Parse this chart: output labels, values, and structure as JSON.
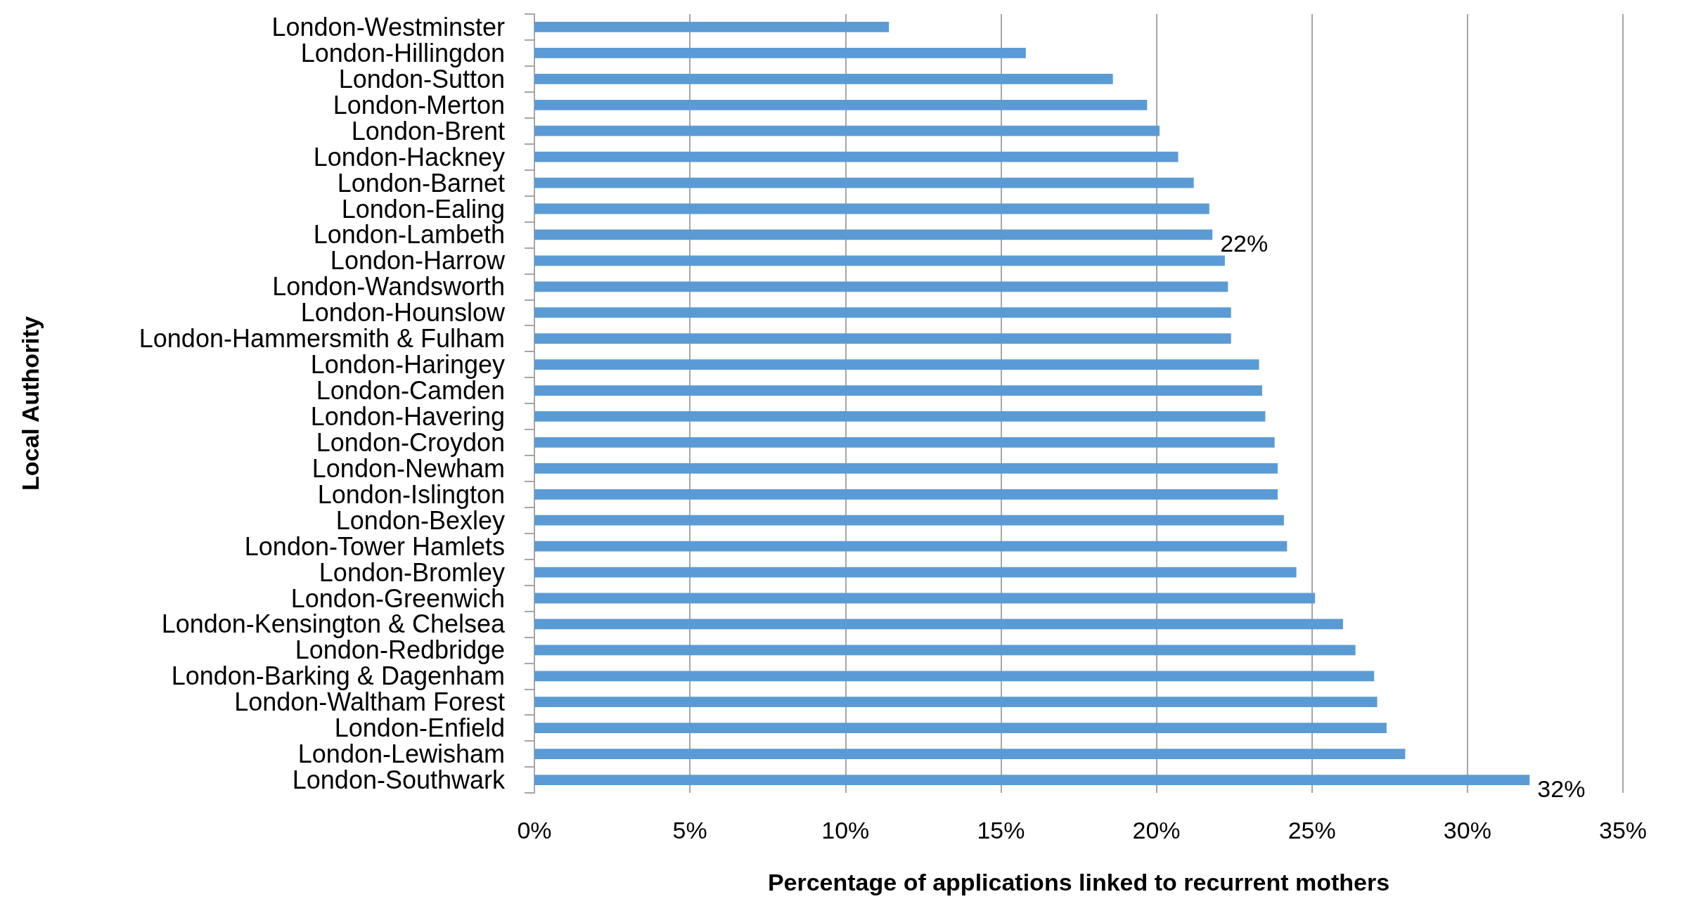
{
  "chart_data": {
    "type": "bar",
    "orientation": "horizontal",
    "xlabel": "Percentage of applications linked to recurrent mothers",
    "ylabel": "Local Authority",
    "categories": [
      "London-Westminster",
      "London-Hillingdon",
      "London-Sutton",
      "London-Merton",
      "London-Brent",
      "London-Hackney",
      "London-Barnet",
      "London-Ealing",
      "London-Lambeth",
      "London-Harrow",
      "London-Wandsworth",
      "London-Hounslow",
      "London-Hammersmith & Fulham",
      "London-Haringey",
      "London-Camden",
      "London-Havering",
      "London-Croydon",
      "London-Newham",
      "London-Islington",
      "London-Bexley",
      "London-Tower Hamlets",
      "London-Bromley",
      "London-Greenwich",
      "London-Kensington & Chelsea",
      "London-Redbridge",
      "London-Barking & Dagenham",
      "London-Waltham Forest",
      "London-Enfield",
      "London-Lewisham",
      "London-Southwark"
    ],
    "values": [
      11.4,
      15.8,
      18.6,
      19.7,
      20.1,
      20.7,
      21.2,
      21.7,
      21.8,
      22.2,
      22.3,
      22.4,
      22.4,
      23.3,
      23.4,
      23.5,
      23.8,
      23.9,
      23.9,
      24.1,
      24.2,
      24.5,
      25.1,
      26.0,
      26.4,
      27.0,
      27.1,
      27.4,
      28.0,
      32.0
    ],
    "value_labels": [
      null,
      null,
      null,
      null,
      null,
      null,
      null,
      null,
      "22%",
      null,
      null,
      null,
      null,
      null,
      null,
      null,
      null,
      null,
      null,
      null,
      null,
      null,
      null,
      null,
      null,
      null,
      null,
      null,
      null,
      "32%"
    ],
    "color": "#5b9bd5",
    "xlim": [
      0,
      35
    ],
    "xticks": [
      {
        "value": 0,
        "label": "0%"
      },
      {
        "value": 5,
        "label": "5%"
      },
      {
        "value": 10,
        "label": "10%"
      },
      {
        "value": 15,
        "label": "15%"
      },
      {
        "value": 20,
        "label": "20%"
      },
      {
        "value": 25,
        "label": "25%"
      },
      {
        "value": 30,
        "label": "30%"
      },
      {
        "value": 35,
        "label": "35%"
      }
    ],
    "grid": "x"
  }
}
